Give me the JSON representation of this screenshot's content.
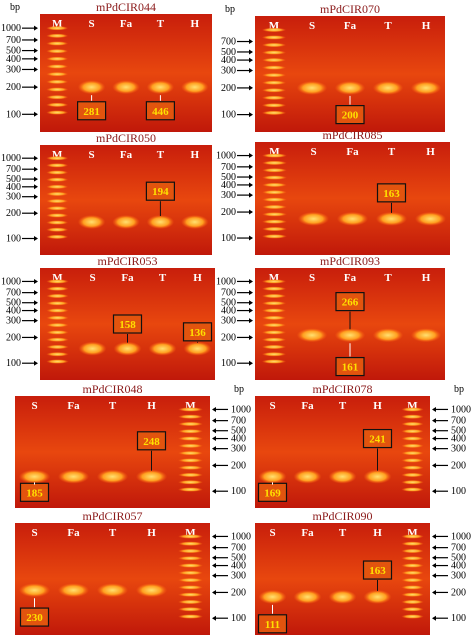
{
  "figure": {
    "panels": [
      {
        "title": "mPdCIR044",
        "bp": "bp",
        "lanes": [
          "M",
          "S",
          "Fa",
          "T",
          "H"
        ],
        "ladder": [
          "1000",
          "700",
          "500",
          "400",
          "300",
          "200",
          "100"
        ],
        "sizes": [
          "281",
          "446"
        ]
      },
      {
        "title": "mPdCIR070",
        "bp": "bp",
        "lanes": [
          "M",
          "S",
          "Fa",
          "T",
          "H"
        ],
        "ladder": [
          "700",
          "500",
          "400",
          "300",
          "200",
          "100"
        ],
        "sizes": [
          "200"
        ]
      },
      {
        "title": "mPdCIR050",
        "lanes": [
          "M",
          "S",
          "Fa",
          "T",
          "H"
        ],
        "ladder": [
          "1000",
          "700",
          "500",
          "400",
          "300",
          "200",
          "100"
        ],
        "sizes": [
          "194"
        ]
      },
      {
        "title": "mPdCIR085",
        "lanes": [
          "M",
          "S",
          "Fa",
          "T",
          "H"
        ],
        "ladder": [
          "1000",
          "700",
          "500",
          "400",
          "300",
          "200",
          "100"
        ],
        "sizes": [
          "163"
        ]
      },
      {
        "title": "mPdCIR053",
        "lanes": [
          "M",
          "S",
          "Fa",
          "T",
          "H"
        ],
        "ladder": [
          "1000",
          "700",
          "500",
          "400",
          "300",
          "200",
          "100"
        ],
        "sizes": [
          "158",
          "136"
        ]
      },
      {
        "title": "mPdCIR093",
        "lanes": [
          "M",
          "S",
          "Fa",
          "T",
          "H"
        ],
        "ladder": [
          "1000",
          "700",
          "500",
          "400",
          "300",
          "200",
          "100"
        ],
        "sizes": [
          "266",
          "161"
        ]
      },
      {
        "title": "mPdCIR048",
        "bp": "bp",
        "lanes": [
          "S",
          "Fa",
          "T",
          "H",
          "M"
        ],
        "ladder": [
          "1000",
          "700",
          "500",
          "400",
          "300",
          "200",
          "100"
        ],
        "sizes": [
          "185",
          "248"
        ]
      },
      {
        "title": "mPdCIR078",
        "bp": "bp",
        "lanes": [
          "S",
          "Fa",
          "T",
          "H",
          "M"
        ],
        "ladder": [
          "1000",
          "700",
          "500",
          "400",
          "300",
          "200",
          "100"
        ],
        "sizes": [
          "169",
          "241"
        ]
      },
      {
        "title": "mPdCIR057",
        "lanes": [
          "S",
          "Fa",
          "T",
          "H",
          "M"
        ],
        "ladder": [
          "1000",
          "700",
          "500",
          "400",
          "300",
          "200",
          "100"
        ],
        "sizes": [
          "230"
        ]
      },
      {
        "title": "mPdCIR090",
        "lanes": [
          "S",
          "Fa",
          "T",
          "H",
          "M"
        ],
        "ladder": [
          "1000",
          "700",
          "500",
          "400",
          "300",
          "200",
          "100"
        ],
        "sizes": [
          "111",
          "163"
        ]
      }
    ]
  }
}
